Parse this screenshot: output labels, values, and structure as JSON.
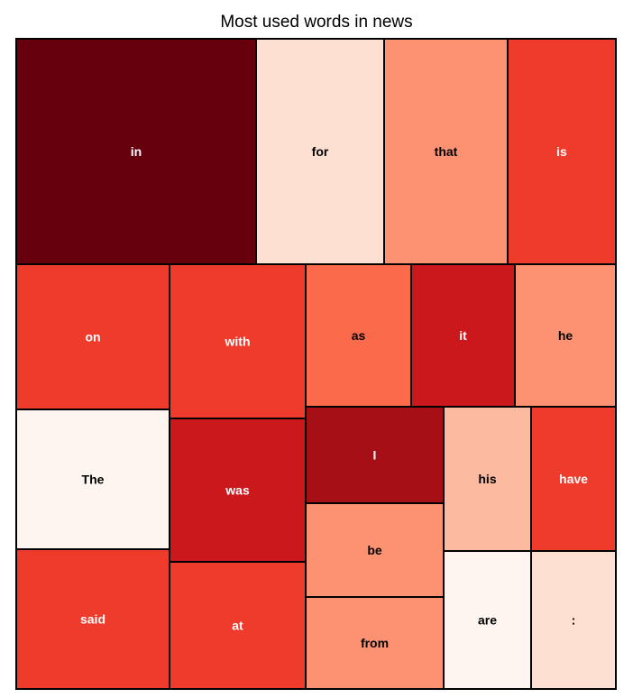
{
  "chart_data": {
    "type": "treemap",
    "title": "Most used words in news",
    "colormap": "Reds",
    "items": [
      {
        "label": "in",
        "color": "#67000d",
        "text_color": "#ffffff"
      },
      {
        "label": "for",
        "color": "#fee0d2",
        "text_color": "#000000"
      },
      {
        "label": "that",
        "color": "#fc9272",
        "text_color": "#000000"
      },
      {
        "label": "is",
        "color": "#ef3b2c",
        "text_color": "#ffffff"
      },
      {
        "label": "on",
        "color": "#ef3b2c",
        "text_color": "#ffffff"
      },
      {
        "label": "with",
        "color": "#ef3b2c",
        "text_color": "#ffffff"
      },
      {
        "label": "as",
        "color": "#fb6a4a",
        "text_color": "#000000"
      },
      {
        "label": "it",
        "color": "#cb181d",
        "text_color": "#ffffff"
      },
      {
        "label": "he",
        "color": "#fc9272",
        "text_color": "#000000"
      },
      {
        "label": "The",
        "color": "#fff5f0",
        "text_color": "#000000"
      },
      {
        "label": "was",
        "color": "#cb181d",
        "text_color": "#ffffff"
      },
      {
        "label": "I",
        "color": "#a50f15",
        "text_color": "#ffffff"
      },
      {
        "label": "his",
        "color": "#fcbba1",
        "text_color": "#000000"
      },
      {
        "label": "have",
        "color": "#ef3b2c",
        "text_color": "#ffffff"
      },
      {
        "label": "be",
        "color": "#fc9272",
        "text_color": "#000000"
      },
      {
        "label": "said",
        "color": "#ef3b2c",
        "text_color": "#ffffff"
      },
      {
        "label": "at",
        "color": "#ef3b2c",
        "text_color": "#ffffff"
      },
      {
        "label": "from",
        "color": "#fc9272",
        "text_color": "#000000"
      },
      {
        "label": "are",
        "color": "#fff5f0",
        "text_color": "#000000"
      },
      {
        "label": ":",
        "color": "#fee0d2",
        "text_color": "#000000"
      }
    ]
  }
}
